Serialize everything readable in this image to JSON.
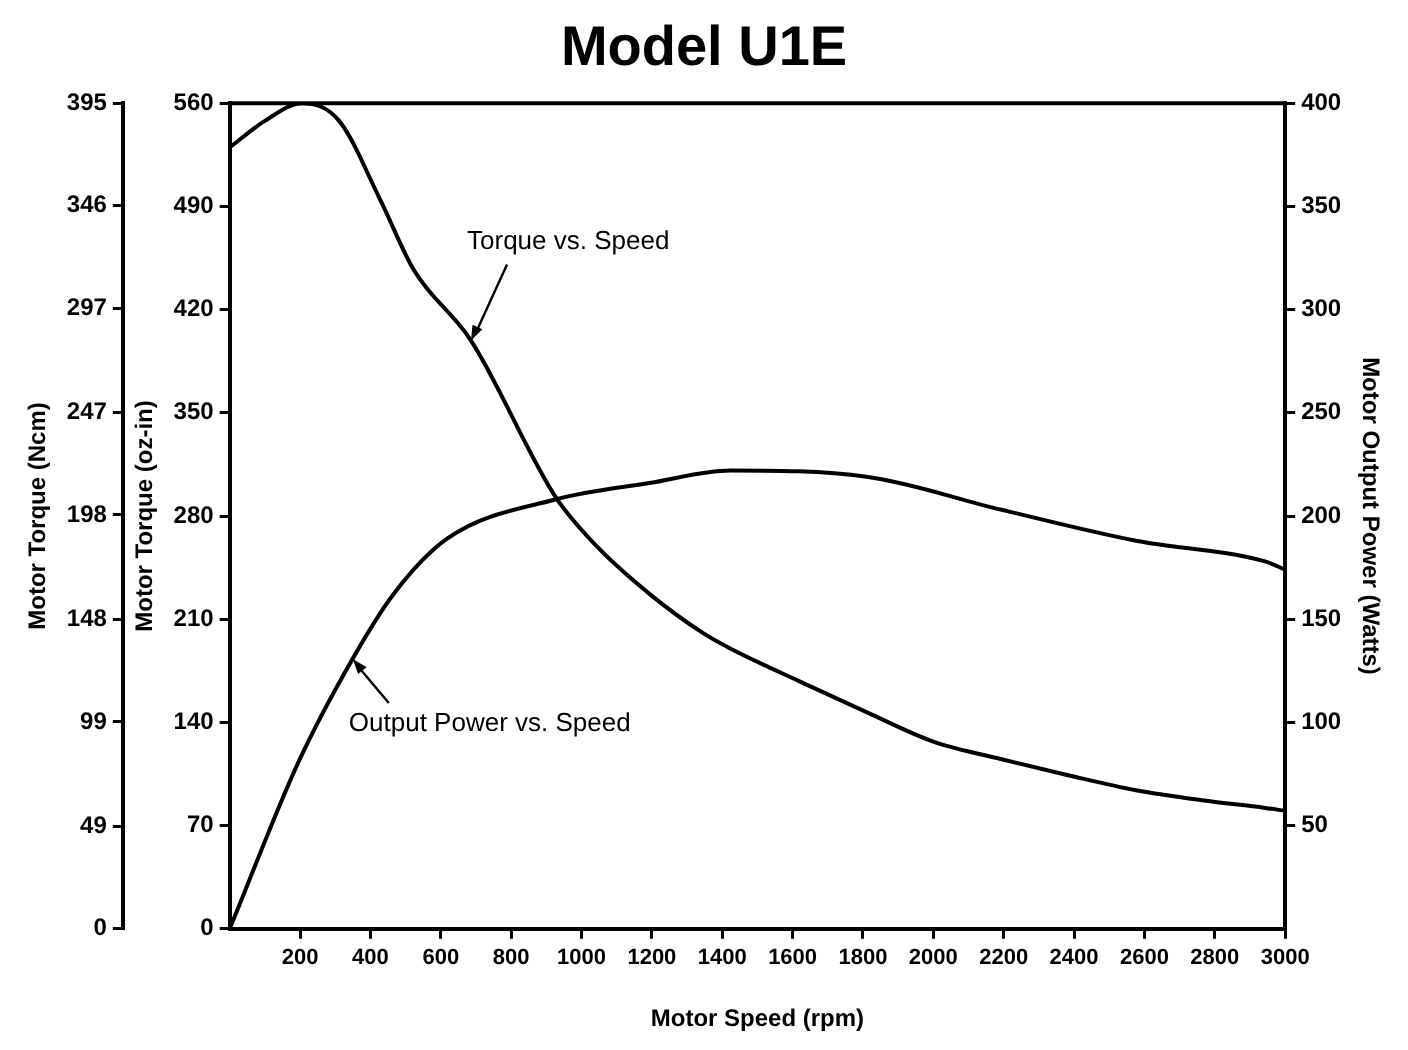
{
  "chart_data": {
    "type": "line",
    "title": "Model U1E",
    "xlabel": "Motor Speed (rpm)",
    "ylabel": "Motor Torque (oz-in)",
    "y2label": "Motor Output Power (Watts)",
    "y3label": "Motor Torque (Ncm)",
    "xlim": [
      0,
      3000
    ],
    "xticks": [
      200,
      400,
      600,
      800,
      1000,
      1200,
      1400,
      1600,
      1800,
      2000,
      2200,
      2400,
      2600,
      2800,
      3000
    ],
    "ylim": [
      0,
      560
    ],
    "yticks": [
      0,
      70,
      140,
      210,
      280,
      350,
      420,
      490,
      560
    ],
    "y2lim": [
      0,
      400
    ],
    "y2ticks": [
      50,
      100,
      150,
      200,
      250,
      300,
      350,
      400
    ],
    "y3lim": [
      0,
      395
    ],
    "y3ticks": [
      0,
      49,
      99,
      148,
      198,
      247,
      297,
      346,
      395
    ],
    "grid": false,
    "legend": false,
    "marker": "none",
    "line_style": "solid",
    "series": [
      {
        "color": "#000000",
        "x": [
          0,
          100,
          206,
          311,
          427,
          523,
          686,
          926,
          1041,
          1194,
          1349,
          1424,
          1618,
          1810,
          2000,
          2194,
          2386,
          2576,
          2770,
          2943,
          3000
        ],
        "values": [
          530,
          548,
          560,
          548,
          495,
          447,
          399,
          293,
          260,
          227,
          200,
          190,
          168,
          147,
          127,
          115,
          104,
          94,
          87,
          82,
          80
        ]
      },
      {
        "color": "#000000",
        "axis": "y2",
        "x": [
          0,
          196,
          350,
          465,
          618,
          926,
          1194,
          1424,
          1810,
          2194,
          2576,
          2943,
          3000
        ],
        "values": [
          0,
          81,
          131,
          162,
          189,
          208,
          216,
          222,
          219,
          203,
          188,
          178,
          174
        ]
      }
    ],
    "annotations": [
      {
        "text": "Torque vs. Speed",
        "x": 686,
        "y": 399
      },
      {
        "text": "Output Power vs. Speed",
        "x": 350,
        "y": 183
      }
    ]
  }
}
